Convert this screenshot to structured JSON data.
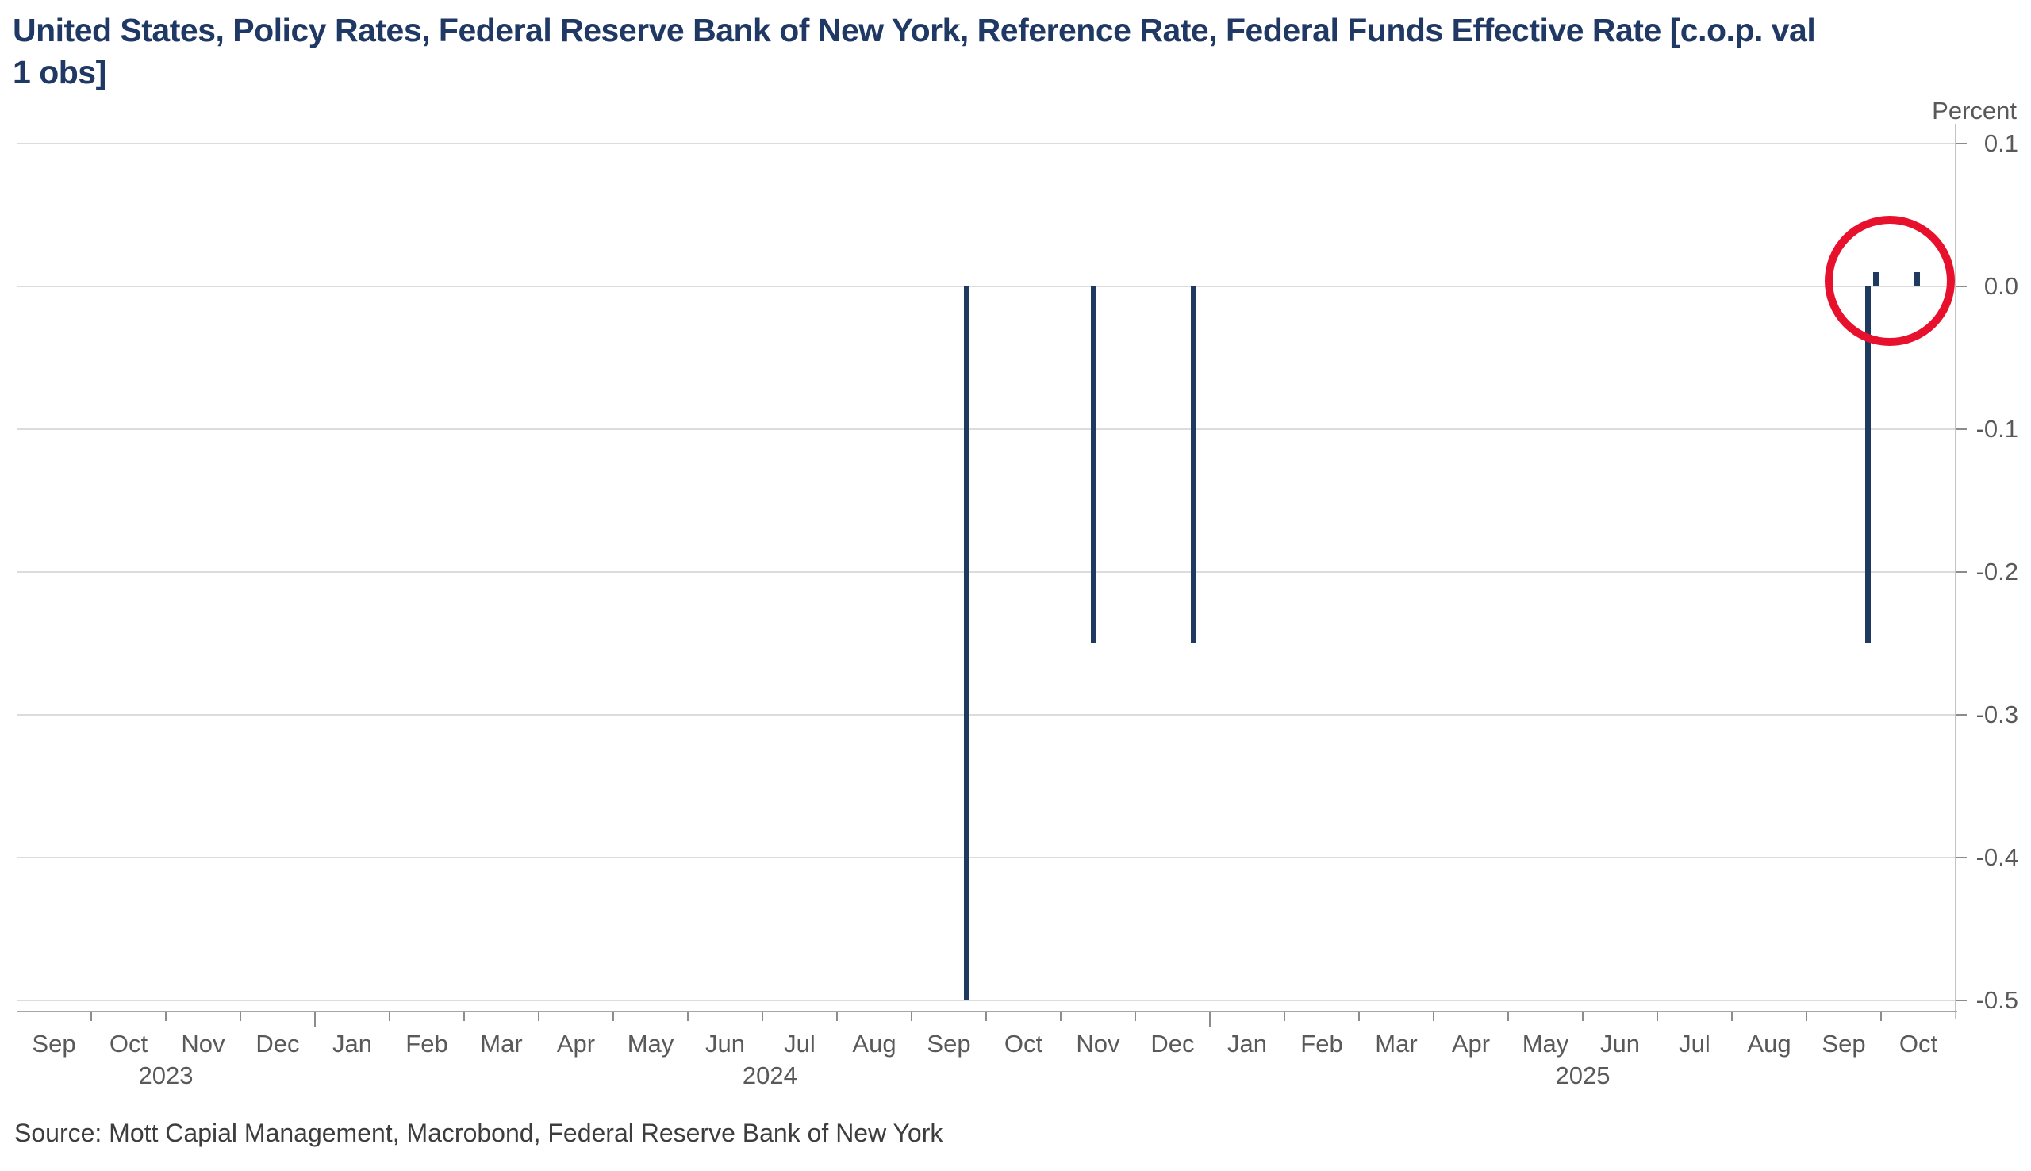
{
  "title": {
    "full": "United States, Policy Rates, Federal Reserve Bank of New York, Reference Rate, Federal Funds Effective Rate [c.o.p. val 1 obs]",
    "lines": [
      "United States, Policy Rates, Federal Reserve Bank of New York, Reference Rate, Federal Funds Effective Rate [c.o.p. val",
      "1 obs]"
    ]
  },
  "source_note": "Source: Mott Capial Management, Macrobond, Federal Reserve Bank of New York",
  "colors": {
    "title_navy": "#1f3864",
    "bar_navy": "#1f3a5f",
    "annotation_red": "#e8112d",
    "axis_text_gray": "#595959",
    "gridline_gray": "#dcdcdc",
    "axis_line_gray": "#a6a6a6",
    "tick_gray": "#8c8c8c",
    "source_gray": "#3d3d3d"
  },
  "chart_data": {
    "type": "bar",
    "title": "United States, Policy Rates, Federal Reserve Bank of New York, Reference Rate, Federal Funds Effective Rate [c.o.p. val 1 obs]",
    "ylabel": "Percent",
    "xlabel": "",
    "ylim": [
      -0.5,
      0.1
    ],
    "grid": true,
    "legend": "none",
    "x_axis": {
      "start_month": "Sep 2023",
      "end_month": "Oct 2025",
      "month_labels": [
        "Sep",
        "Oct",
        "Nov",
        "Dec",
        "Jan",
        "Feb",
        "Mar",
        "Apr",
        "May",
        "Jun",
        "Jul",
        "Aug",
        "Sep",
        "Oct",
        "Nov",
        "Dec",
        "Jan",
        "Feb",
        "Mar",
        "Apr",
        "May",
        "Jun",
        "Jul",
        "Aug",
        "Sep",
        "Oct"
      ],
      "year_labels": [
        {
          "label": "2023",
          "month_frac": 2.0
        },
        {
          "label": "2024",
          "month_frac": 10.1
        },
        {
          "label": "2025",
          "month_frac": 21.0
        }
      ]
    },
    "yticks": [
      {
        "label": "0.1",
        "value": 0.1
      },
      {
        "label": "0.0",
        "value": 0.0
      },
      {
        "label": "-0.1",
        "value": -0.1
      },
      {
        "label": "-0.2",
        "value": -0.2
      },
      {
        "label": "-0.3",
        "value": -0.3
      },
      {
        "label": "-0.4",
        "value": -0.4
      },
      {
        "label": "-0.5",
        "value": -0.5
      }
    ],
    "points": [
      {
        "period": "Sep 2024",
        "value": -0.5,
        "month_frac": 12.74
      },
      {
        "period": "Nov 2024",
        "value": -0.25,
        "month_frac": 14.44
      },
      {
        "period": "Dec 2024",
        "value": -0.25,
        "month_frac": 15.78
      },
      {
        "period": "Sep 2025",
        "value": -0.25,
        "month_frac": 24.82
      },
      {
        "period": "Sep 2025 small uptick",
        "value": 0.01,
        "month_frac": 24.93
      },
      {
        "period": "Oct 2025 small uptick",
        "value": 0.01,
        "month_frac": 25.48
      }
    ],
    "annotation": {
      "shape": "circle",
      "center_month_frac": 25.12,
      "center_value": 0.004,
      "radius_px": 82,
      "stroke_px": 10,
      "color": "#e8112d",
      "note": "highlights the small near-zero changes in Sep-Oct 2025"
    }
  }
}
